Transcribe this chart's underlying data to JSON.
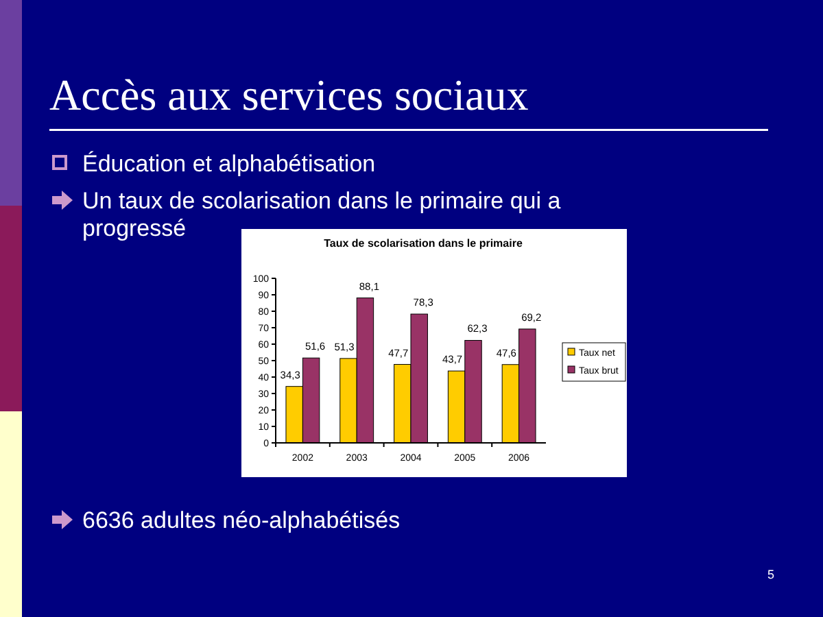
{
  "chart_data": {
    "type": "bar",
    "title": "Taux de scolarisation dans le primaire",
    "categories": [
      "2002",
      "2003",
      "2004",
      "2005",
      "2006"
    ],
    "series": [
      {
        "name": "Taux net",
        "color": "#ffcc00",
        "values": [
          34.3,
          51.3,
          47.7,
          43.7,
          47.6
        ],
        "value_labels": [
          "34,3",
          "51,3",
          "47,7",
          "43,7",
          "47,6"
        ]
      },
      {
        "name": "Taux brut",
        "color": "#993366",
        "values": [
          51.6,
          88.1,
          78.3,
          62.3,
          69.2
        ],
        "value_labels": [
          "51,6",
          "88,1",
          "78,3",
          "62,3",
          "69,2"
        ]
      }
    ],
    "ylim": [
      0,
      100
    ],
    "yticks": [
      0,
      10,
      20,
      30,
      40,
      50,
      60,
      70,
      80,
      90,
      100
    ],
    "legend": "right",
    "grid": false,
    "annotations": [
      "Accès aux services sociaux",
      "Éducation et alphabétisation",
      "Un taux de scolarisation dans le primaire qui a progressé",
      "6636 adultes néo-alphabétisés",
      "5"
    ]
  }
}
